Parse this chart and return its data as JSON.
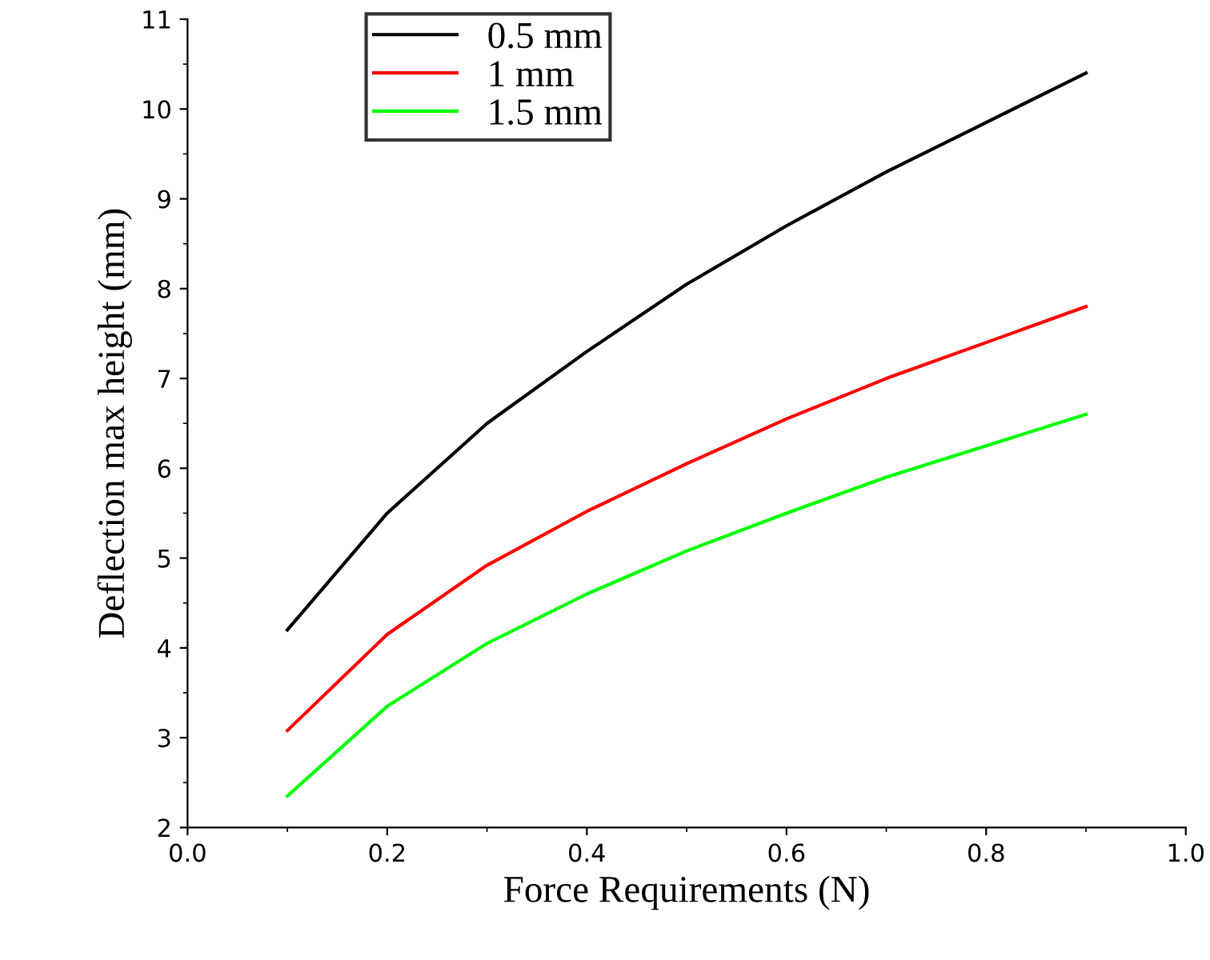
{
  "chart_data": {
    "type": "line",
    "xlabel": "Force Requirements (N)",
    "ylabel": "Deflection max height (mm)",
    "x": [
      0.1,
      0.2,
      0.3,
      0.4,
      0.5,
      0.6,
      0.7,
      0.8,
      0.9
    ],
    "series": [
      {
        "name": "0.5 mm",
        "color": "#000000",
        "values": [
          4.2,
          5.5,
          6.5,
          7.3,
          8.05,
          8.7,
          9.3,
          9.85,
          10.4
        ]
      },
      {
        "name": "1 mm",
        "color": "#ff0000",
        "values": [
          3.08,
          4.15,
          4.92,
          5.52,
          6.05,
          6.55,
          7.0,
          7.4,
          7.8
        ]
      },
      {
        "name": "1.5 mm",
        "color": "#00ff00",
        "values": [
          2.35,
          3.35,
          4.05,
          4.6,
          5.08,
          5.5,
          5.9,
          6.25,
          6.6
        ]
      }
    ],
    "xlim": [
      0.0,
      1.0
    ],
    "xticks": [
      {
        "value": 0.0,
        "label": "0.0"
      },
      {
        "value": 0.2,
        "label": "0.2"
      },
      {
        "value": 0.4,
        "label": "0.4"
      },
      {
        "value": 0.6,
        "label": "0.6"
      },
      {
        "value": 0.8,
        "label": "0.8"
      },
      {
        "value": 1.0,
        "label": "1.0"
      }
    ],
    "ylim": [
      2,
      11
    ],
    "yticks": [
      2,
      3,
      4,
      5,
      6,
      7,
      8,
      9,
      10,
      11
    ],
    "legend": "top left",
    "grid": false,
    "marker": "none",
    "line_style": "solid"
  }
}
